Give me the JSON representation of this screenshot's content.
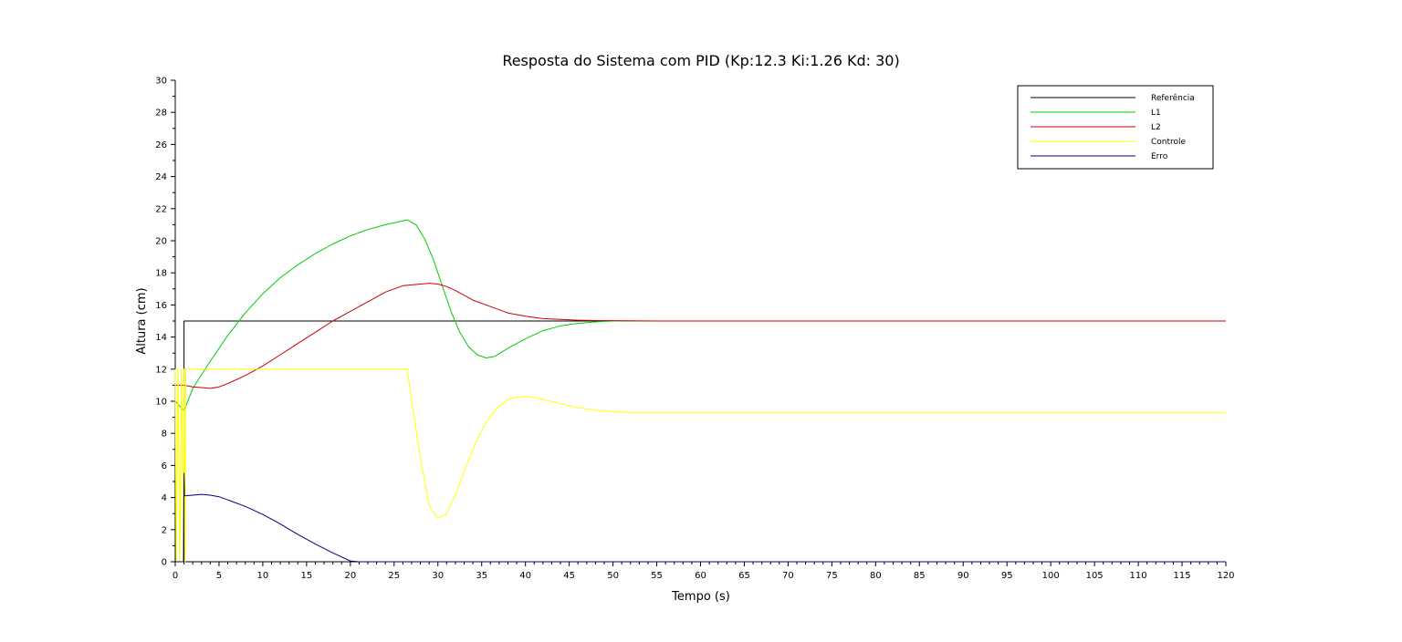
{
  "chart_data": {
    "type": "line",
    "title": "Resposta do Sistema com PID (Kp:12.3 Ki:1.26 Kd: 30)",
    "xlabel": "Tempo (s)",
    "ylabel": "Altura (cm)",
    "xlim": [
      0,
      120
    ],
    "ylim": [
      0,
      30
    ],
    "xticks": [
      0,
      5,
      10,
      15,
      20,
      25,
      30,
      35,
      40,
      45,
      50,
      55,
      60,
      65,
      70,
      75,
      80,
      85,
      90,
      95,
      100,
      105,
      110,
      115,
      120
    ],
    "yticks": [
      0,
      2,
      4,
      6,
      8,
      10,
      12,
      14,
      16,
      18,
      20,
      22,
      24,
      26,
      28,
      30
    ],
    "grid": false,
    "legend_position": "top-right",
    "series": [
      {
        "name": "Referência",
        "color": "#000000",
        "x": [
          0,
          1,
          1,
          120
        ],
        "y": [
          0,
          0,
          15,
          15
        ]
      },
      {
        "name": "L1",
        "color": "#00cc00",
        "x": [
          0,
          1,
          2,
          4,
          6,
          8,
          10,
          12,
          14,
          16,
          18,
          20,
          22,
          24,
          26.5,
          27.5,
          28.5,
          29.5,
          30.5,
          31.5,
          32.5,
          33.5,
          34.5,
          35.5,
          36.5,
          38,
          40,
          42,
          44,
          46,
          48,
          50,
          55,
          60,
          93
        ],
        "y": [
          10,
          9.4,
          10.8,
          12.5,
          14.1,
          15.5,
          16.7,
          17.7,
          18.5,
          19.2,
          19.8,
          20.3,
          20.7,
          21.0,
          21.3,
          21.0,
          20.1,
          18.8,
          17.2,
          15.6,
          14.3,
          13.4,
          12.9,
          12.7,
          12.8,
          13.3,
          13.9,
          14.4,
          14.7,
          14.85,
          14.95,
          15.0,
          15.0,
          15.0,
          15.0
        ]
      },
      {
        "name": "L2",
        "color": "#cc0000",
        "x": [
          0,
          1,
          2,
          3,
          4,
          5,
          6,
          8,
          10,
          12,
          14,
          16,
          18,
          20,
          22,
          24,
          26,
          28,
          29,
          30,
          31,
          32,
          33,
          34,
          36,
          38,
          40,
          42,
          44,
          46,
          48,
          50,
          55,
          60,
          120
        ],
        "y": [
          11.0,
          11.0,
          10.9,
          10.85,
          10.8,
          10.9,
          11.1,
          11.6,
          12.2,
          12.9,
          13.6,
          14.3,
          15.0,
          15.6,
          16.2,
          16.8,
          17.2,
          17.3,
          17.35,
          17.3,
          17.15,
          16.9,
          16.6,
          16.3,
          15.9,
          15.5,
          15.3,
          15.15,
          15.1,
          15.05,
          15.03,
          15.02,
          15.0,
          15.0,
          15.0
        ]
      },
      {
        "name": "Controle",
        "color": "#ffff00",
        "x": [
          0,
          0.1,
          0.3,
          0.5,
          0.7,
          0.9,
          1.0,
          1.1,
          1.2,
          1.5,
          26.5,
          27,
          28,
          29,
          30,
          31,
          32,
          33,
          34,
          35,
          36,
          37,
          38,
          39,
          40,
          41,
          42,
          44,
          46,
          48,
          50,
          52,
          55,
          60,
          120
        ],
        "y": [
          12.0,
          0,
          12.0,
          0,
          12.0,
          0,
          12.0,
          0,
          12.0,
          12.0,
          12.0,
          10.0,
          6.5,
          3.5,
          2.7,
          3.0,
          4.2,
          5.6,
          7.0,
          8.2,
          9.1,
          9.7,
          10.1,
          10.25,
          10.3,
          10.25,
          10.1,
          9.85,
          9.6,
          9.45,
          9.35,
          9.3,
          9.3,
          9.3,
          9.3
        ]
      },
      {
        "name": "Erro",
        "color": "#000080",
        "x": [
          0,
          0.95,
          1.0,
          1.05,
          2,
          3,
          4,
          5,
          6,
          8,
          10,
          12,
          14,
          16,
          18,
          20,
          21,
          120
        ],
        "y": [
          0,
          0,
          5.5,
          4.1,
          4.15,
          4.2,
          4.15,
          4.05,
          3.85,
          3.45,
          2.95,
          2.35,
          1.7,
          1.1,
          0.55,
          0.05,
          0,
          0
        ]
      }
    ]
  }
}
